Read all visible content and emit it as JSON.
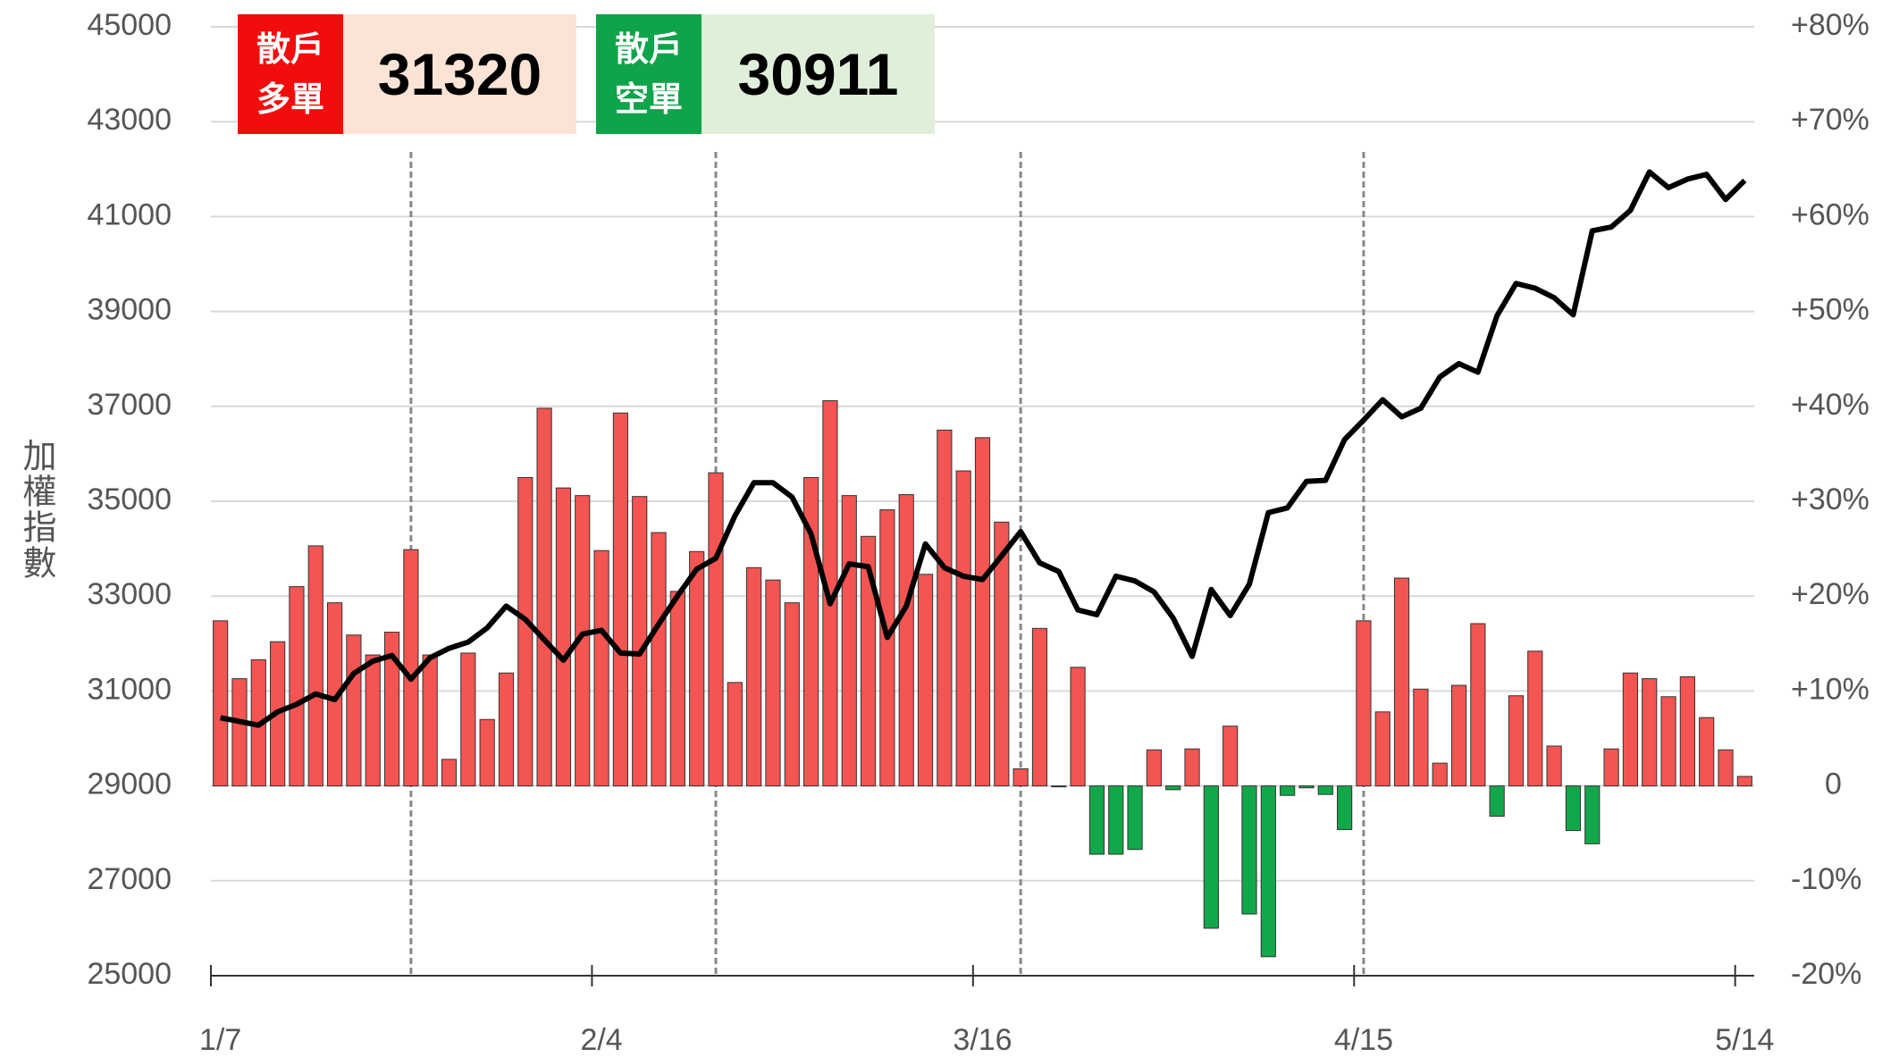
{
  "header": {
    "long": {
      "label": [
        "散戶",
        "多單"
      ],
      "value": "31320"
    },
    "short": {
      "label": [
        "散戶",
        "空單"
      ],
      "value": "30911"
    }
  },
  "chart_data": {
    "type": "bar-line",
    "y_label": "加權指數",
    "categories": [
      "1/7",
      null,
      null,
      null,
      null,
      null,
      null,
      null,
      null,
      null,
      null,
      null,
      null,
      null,
      null,
      null,
      null,
      null,
      null,
      null,
      "2/4",
      null,
      null,
      null,
      null,
      null,
      null,
      null,
      null,
      null,
      null,
      null,
      null,
      null,
      null,
      null,
      null,
      null,
      null,
      null,
      "3/16",
      null,
      null,
      null,
      null,
      null,
      null,
      null,
      null,
      null,
      null,
      null,
      null,
      null,
      null,
      null,
      null,
      null,
      null,
      null,
      "4/15",
      null,
      null,
      null,
      null,
      null,
      null,
      null,
      null,
      null,
      null,
      null,
      null,
      null,
      null,
      null,
      null,
      null,
      null,
      null,
      "5/14"
    ],
    "series": [
      {
        "name": "bars",
        "kind": "bar",
        "axis": "y2",
        "color": "#f25552",
        "neg_color": "#12a84a",
        "values": [
          17.4,
          11.3,
          13.3,
          15.2,
          21.0,
          25.3,
          19.3,
          15.9,
          13.8,
          16.2,
          24.9,
          13.8,
          2.8,
          14.0,
          7.0,
          11.9,
          32.5,
          39.8,
          31.4,
          30.6,
          24.8,
          39.3,
          30.5,
          26.7,
          20.5,
          24.7,
          33.0,
          10.9,
          23.0,
          21.7,
          19.3,
          32.5,
          40.6,
          30.6,
          26.3,
          29.1,
          30.7,
          22.3,
          37.5,
          33.2,
          36.7,
          27.8,
          1.8,
          16.6,
          -0.1,
          12.5,
          -7.2,
          -7.2,
          -6.7,
          3.8,
          -0.4,
          3.9,
          -15.0,
          6.3,
          -13.5,
          -18.0,
          -1.0,
          -0.2,
          -0.9,
          -4.6,
          17.4,
          7.8,
          21.9,
          10.2,
          2.4,
          10.6,
          17.1,
          -3.2,
          9.5,
          14.2,
          4.2,
          -4.7,
          -6.1,
          3.9,
          11.9,
          11.3,
          9.4,
          11.5,
          7.2,
          3.8,
          1.0
        ]
      },
      {
        "name": "index",
        "kind": "line",
        "axis": "y",
        "color": "#000000",
        "values": [
          30437,
          30360,
          30280,
          30560,
          30720,
          30940,
          30820,
          31370,
          31630,
          31750,
          31250,
          31700,
          31900,
          32030,
          32330,
          32790,
          32510,
          32080,
          31650,
          32200,
          32280,
          31800,
          31780,
          32410,
          33010,
          33570,
          33800,
          34690,
          35390,
          35390,
          35090,
          34310,
          32840,
          33680,
          33620,
          32130,
          32790,
          34100,
          33600,
          33420,
          33350,
          33850,
          34360,
          33700,
          33520,
          32710,
          32610,
          33420,
          33320,
          33090,
          32540,
          31730,
          33140,
          32590,
          33250,
          34760,
          34860,
          35420,
          35440,
          36300,
          36710,
          37140,
          36780,
          36960,
          37620,
          37900,
          37720,
          38910,
          39590,
          39490,
          39290,
          38930,
          40700,
          40780,
          41130,
          41940,
          41610,
          41790,
          41890,
          41360,
          41760
        ]
      }
    ],
    "vlines": [
      10,
      26,
      42,
      60
    ],
    "ylim": [
      25000,
      45000
    ],
    "yticks": [
      25000,
      27000,
      29000,
      31000,
      33000,
      35000,
      37000,
      39000,
      41000,
      43000,
      45000
    ],
    "y2lim": [
      -20,
      80
    ],
    "y2ticks": [
      {
        "value": -20,
        "label": "-20%"
      },
      {
        "value": -10,
        "label": "-10%"
      },
      0,
      {
        "value": 10,
        "label": "+10%"
      },
      {
        "value": 20,
        "label": "+20%"
      },
      {
        "value": 30,
        "label": "+30%"
      },
      {
        "value": 40,
        "label": "+40%"
      },
      {
        "value": 50,
        "label": "+50%"
      },
      {
        "value": 60,
        "label": "+60%"
      },
      {
        "value": 70,
        "label": "+70%"
      },
      {
        "value": 80,
        "label": "+80%"
      }
    ],
    "grid": true
  }
}
